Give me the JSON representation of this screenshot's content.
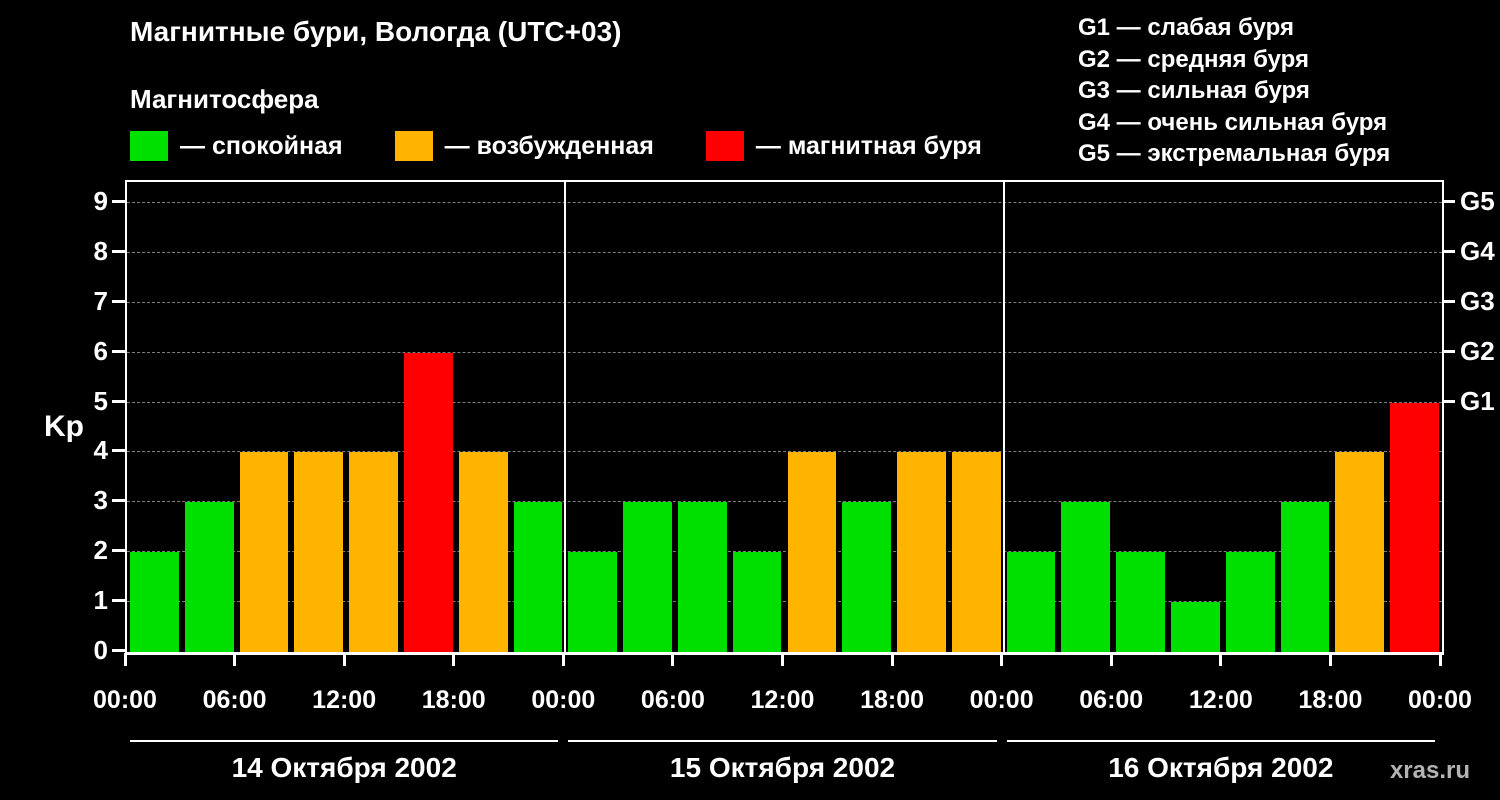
{
  "title": "Магнитные бури, Вологда (UTC+03)",
  "subtitle": "Магнитосфера",
  "watermark": "xras.ru",
  "legend": {
    "items": [
      {
        "name": "quiet",
        "label": "— спокойная",
        "color": "#00e000"
      },
      {
        "name": "active",
        "label": "— возбужденная",
        "color": "#ffb400"
      },
      {
        "name": "storm",
        "label": "— магнитная буря",
        "color": "#ff0000"
      }
    ]
  },
  "g_legend": {
    "items": [
      "G1 — слабая буря",
      "G2 — средняя буря",
      "G3 — сильная буря",
      "G4 — очень сильная буря",
      "G5 — экстремальная буря"
    ]
  },
  "chart_data": {
    "type": "bar",
    "title": "Магнитные бури, Вологда (UTC+03)",
    "ylabel": "Kp",
    "ylim": [
      0,
      9
    ],
    "yticks": [
      0,
      1,
      2,
      3,
      4,
      5,
      6,
      7,
      8,
      9
    ],
    "grid": "dashed horizontal",
    "right_axis_labels": [
      {
        "value": 9,
        "label": "G5"
      },
      {
        "value": 8,
        "label": "G4"
      },
      {
        "value": 7,
        "label": "G3"
      },
      {
        "value": 6,
        "label": "G2"
      },
      {
        "value": 5,
        "label": "G1"
      }
    ],
    "x_tick_labels": [
      "00:00",
      "06:00",
      "12:00",
      "18:00",
      "00:00",
      "06:00",
      "12:00",
      "18:00",
      "00:00",
      "06:00",
      "12:00",
      "18:00",
      "00:00"
    ],
    "interval_hours": 3,
    "days": [
      {
        "date": "14 Октября 2002",
        "values": [
          2,
          3,
          4,
          4,
          4,
          6,
          4,
          3
        ]
      },
      {
        "date": "15 Октября 2002",
        "values": [
          2,
          3,
          3,
          2,
          4,
          3,
          4,
          4
        ]
      },
      {
        "date": "16 Октября 2002",
        "values": [
          2,
          3,
          2,
          1,
          2,
          3,
          4,
          5
        ]
      }
    ],
    "colors": {
      "quiet": "#00e000",
      "active": "#ffb400",
      "storm": "#ff0000"
    },
    "color_thresholds": {
      "quiet_max_kp": 3,
      "active_kp": 4,
      "storm_min_kp": 5
    }
  }
}
